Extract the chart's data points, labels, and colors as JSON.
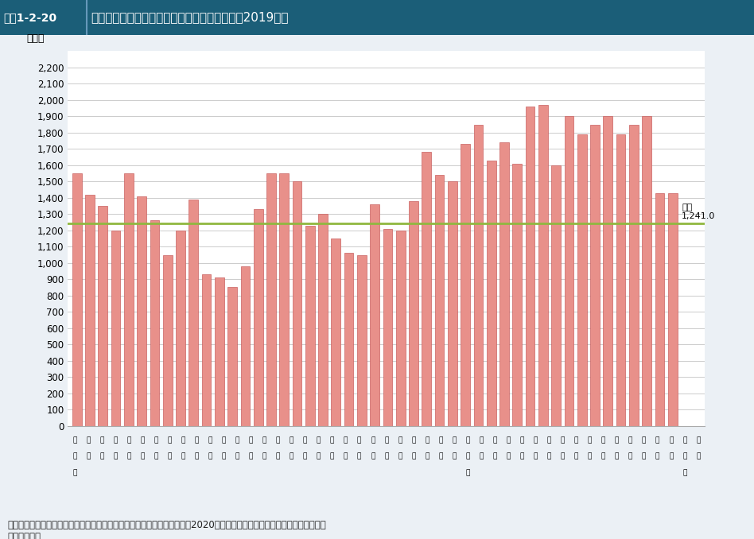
{
  "title_box": "図表1-2-20",
  "title_main": "都道府県別人口１０万対看護師・准看護師数（2019年）",
  "ylabel": "（人）",
  "national_avg": 1241.0,
  "national_label": "全国\n1,241.0",
  "ylim_max": 2300,
  "bar_color": "#E8908A",
  "bar_edge_color": "#C86060",
  "line_color": "#90B840",
  "header_bg": "#1B5E78",
  "fig_bg": "#EBF0F5",
  "plot_bg": "#FFFFFF",
  "grid_color": "#CCCCCC",
  "note": "資料：総務省「住民基本台帳に基づく人口、人口動態及び世帯数調査」（2020年）により厚生労働省医政局看護課において\n　　　作成。",
  "values": [
    1550,
    1420,
    1350,
    1200,
    1550,
    1410,
    1260,
    1050,
    1200,
    1390,
    930,
    910,
    850,
    980,
    1330,
    1550,
    1550,
    1500,
    1230,
    1300,
    1150,
    1060,
    1050,
    1360,
    1210,
    1200,
    1380,
    1680,
    1540,
    1500,
    1730,
    1850,
    1630,
    1740,
    1610,
    1960,
    1970,
    1600,
    1900,
    1790,
    1850,
    1900,
    1790,
    1850,
    1900,
    1430,
    1430
  ],
  "labels_row1": [
    "北",
    "青",
    "岩",
    "宮",
    "秋",
    "山",
    "福",
    "茨",
    "栃",
    "群",
    "埼",
    "千",
    "東",
    "神",
    "新",
    "富",
    "石",
    "福",
    "山",
    "長",
    "岐",
    "静",
    "愛",
    "三",
    "滋",
    "京",
    "大",
    "兵",
    "奈",
    "和",
    "鳥",
    "島",
    "岡",
    "広",
    "山",
    "徳",
    "香",
    "愛",
    "高",
    "福",
    "佐",
    "長",
    "熊",
    "大",
    "宮",
    "鹿",
    "沖"
  ],
  "labels_row2": [
    "海",
    "森",
    "手",
    "城",
    "田",
    "形",
    "島",
    "城",
    "木",
    "馬",
    "玉",
    "葉",
    "京",
    "奈",
    "潟",
    "山",
    "川",
    "井",
    "梨",
    "野",
    "阜",
    "岡",
    "知",
    "重",
    "賀",
    "都",
    "阪",
    "庫",
    "良",
    "歌",
    "取",
    "根",
    "山",
    "島",
    "口",
    "島",
    "川",
    "媛",
    "知",
    "岡",
    "賀",
    "崎",
    "本",
    "分",
    "崎",
    "児",
    "縄"
  ],
  "labels_row3": [
    "道",
    "",
    "",
    "",
    "",
    "",
    "",
    "",
    "",
    "",
    "",
    "",
    "",
    "",
    "",
    "",
    "",
    "",
    "",
    "",
    "",
    "",
    "",
    "",
    "",
    "",
    "",
    "",
    "",
    "山",
    "",
    "",
    "",
    "",
    "",
    "",
    "",
    "",
    "",
    "",
    "",
    "",
    "",
    "",
    "",
    "島",
    ""
  ]
}
